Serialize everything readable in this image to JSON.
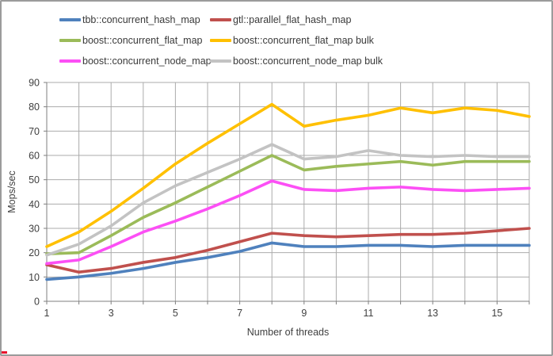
{
  "window": {
    "background": "#FFFFFF",
    "border_color": "#9B9B9B",
    "artifact_color": "#E8112D"
  },
  "chart_data": {
    "type": "line",
    "title": "",
    "xlabel": "Number of threads",
    "ylabel": "Mops/sec",
    "x": [
      1,
      2,
      3,
      4,
      5,
      6,
      7,
      8,
      9,
      10,
      11,
      12,
      13,
      14,
      15,
      16
    ],
    "xlim": [
      1,
      16
    ],
    "ylim": [
      0,
      90
    ],
    "yticks": [
      0,
      10,
      20,
      30,
      40,
      50,
      60,
      70,
      80,
      90
    ],
    "xtick_labels": [
      "1",
      "3",
      "5",
      "7",
      "9",
      "11",
      "13",
      "15"
    ],
    "xtick_label_positions": [
      1,
      3,
      5,
      7,
      9,
      11,
      13,
      15
    ],
    "grid": true,
    "legend_position": "top",
    "colors": {
      "grid": "#ABABAB",
      "axis": "#7F7F7F",
      "tick_text": "#404040",
      "label_text": "#404040"
    },
    "series": [
      {
        "name": "tbb::concurrent_hash_map",
        "color": "#4F81BD",
        "values": [
          9,
          10,
          11.5,
          13.5,
          16,
          18,
          20.5,
          24,
          22.5,
          22.5,
          23,
          23,
          22.5,
          23,
          23,
          23
        ]
      },
      {
        "name": "gtl::parallel_flat_hash_map",
        "color": "#C0504D",
        "values": [
          15,
          12,
          13.5,
          16,
          18,
          21,
          24.5,
          28,
          27,
          26.5,
          27,
          27.5,
          27.5,
          28,
          29,
          30
        ]
      },
      {
        "name": "boost::concurrent_flat_map",
        "color": "#9BBB59",
        "values": [
          19.5,
          20,
          27,
          34.5,
          40.5,
          47,
          53.5,
          60,
          54,
          55.5,
          56.5,
          57.5,
          56,
          57.5,
          57.5,
          57.5
        ]
      },
      {
        "name": "boost::concurrent_flat_map bulk",
        "color": "#FFC000",
        "values": [
          22.5,
          28.5,
          37,
          46.5,
          56.5,
          65,
          73,
          81,
          72,
          74.5,
          76.5,
          79.5,
          77.5,
          79.5,
          78.5,
          76
        ]
      },
      {
        "name": "boost::concurrent_node_map",
        "color": "#FC4FF5",
        "values": [
          15.5,
          17,
          22.5,
          28.5,
          33,
          38,
          43.5,
          49.5,
          46,
          45.5,
          46.5,
          47,
          46,
          45.5,
          46,
          46.5
        ]
      },
      {
        "name": "boost::concurrent_node_map bulk",
        "color": "#C3C3C3",
        "values": [
          19,
          23.5,
          31,
          40.5,
          47.5,
          53,
          58.5,
          64.5,
          58.5,
          59.5,
          62,
          60,
          59.5,
          60,
          59.5,
          59.5
        ]
      }
    ]
  },
  "legend": {
    "items": [
      {
        "series": 0
      },
      {
        "series": 1
      },
      {
        "series": 2
      },
      {
        "series": 3
      },
      {
        "series": 4
      },
      {
        "series": 5
      }
    ]
  }
}
